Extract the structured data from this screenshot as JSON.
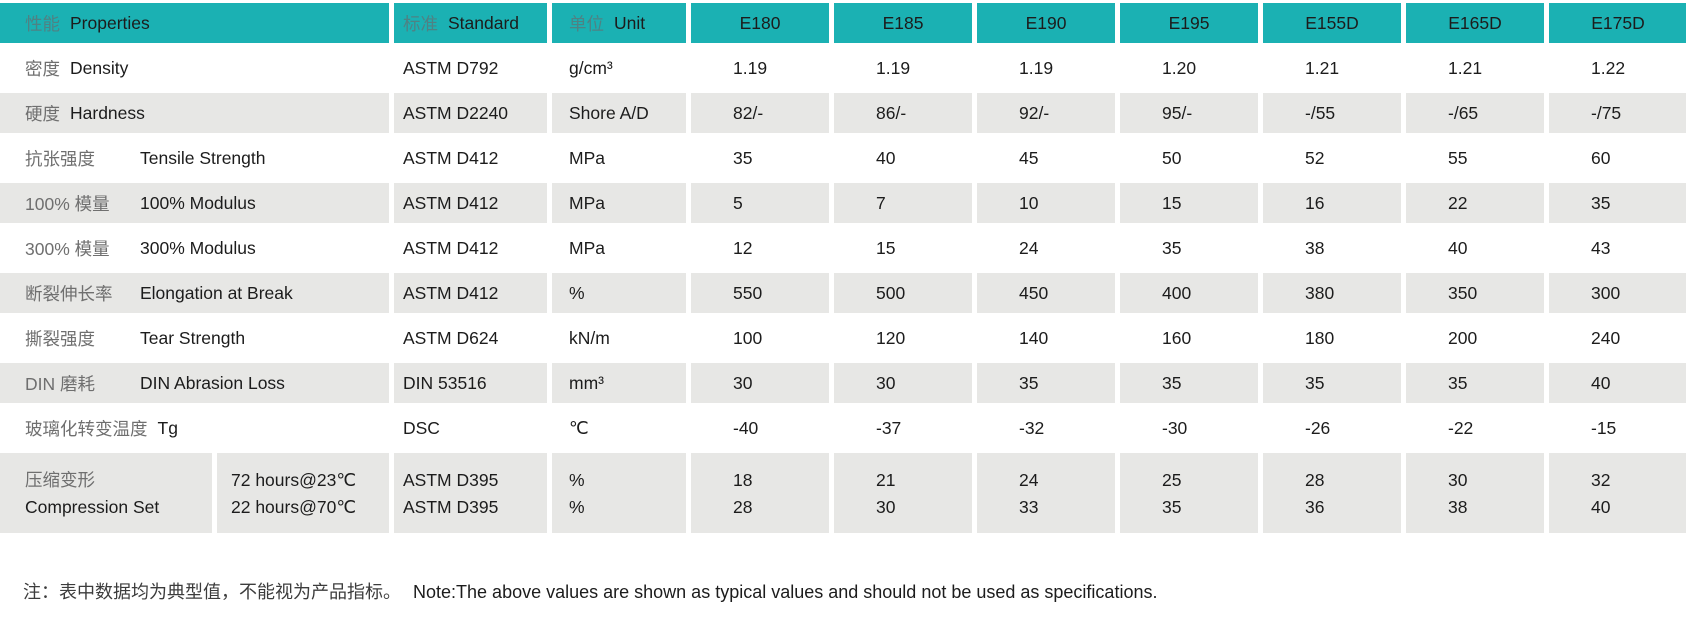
{
  "colors": {
    "header_bg": "#1bb1b3",
    "row_stripe_bg": "#e7e7e5",
    "text": "#1c1c1c",
    "chinese_text": "#6f6f6f",
    "header_chinese_text": "#4e8284"
  },
  "table": {
    "header": {
      "properties_zh": "性能",
      "properties_en": "Properties",
      "standard_zh": "标准",
      "standard_en": "Standard",
      "unit_zh": "单位",
      "unit_en": "Unit",
      "models": [
        "E180",
        "E185",
        "E190",
        "E195",
        "E155D",
        "E165D",
        "E175D"
      ]
    },
    "rows": [
      {
        "zh": "密度",
        "en": "Density",
        "tab": false,
        "standard": "ASTM D792",
        "unit": "g/cm³",
        "values": [
          "1.19",
          "1.19",
          "1.19",
          "1.20",
          "1.21",
          "1.21",
          "1.22"
        ]
      },
      {
        "zh": "硬度",
        "en": "Hardness",
        "tab": false,
        "standard": "ASTM D2240",
        "unit": "Shore A/D",
        "values": [
          "82/-",
          "86/-",
          "92/-",
          "95/-",
          "-/55",
          "-/65",
          "-/75"
        ]
      },
      {
        "zh": "抗张强度",
        "en": "Tensile Strength",
        "tab": true,
        "standard": "ASTM D412",
        "unit": "MPa",
        "values": [
          "35",
          "40",
          "45",
          "50",
          "52",
          "55",
          "60"
        ]
      },
      {
        "zh": "100% 模量",
        "en": "100% Modulus",
        "tab": true,
        "standard": "ASTM D412",
        "unit": "MPa",
        "values": [
          "5",
          "7",
          "10",
          "15",
          "16",
          "22",
          "35"
        ]
      },
      {
        "zh": "300% 模量",
        "en": "300% Modulus",
        "tab": true,
        "standard": "ASTM D412",
        "unit": "MPa",
        "values": [
          "12",
          "15",
          "24",
          "35",
          "38",
          "40",
          "43"
        ]
      },
      {
        "zh": "断裂伸长率",
        "en": "Elongation at Break",
        "tab": true,
        "standard": "ASTM D412",
        "unit": "%",
        "values": [
          "550",
          "500",
          "450",
          "400",
          "380",
          "350",
          "300"
        ]
      },
      {
        "zh": "撕裂强度",
        "en": "Tear Strength",
        "tab": true,
        "standard": "ASTM D624",
        "unit": "kN/m",
        "values": [
          "100",
          "120",
          "140",
          "160",
          "180",
          "200",
          "240"
        ]
      },
      {
        "zh": "DIN 磨耗",
        "en": "DIN Abrasion Loss",
        "tab": true,
        "standard": "DIN 53516",
        "unit": "mm³",
        "values": [
          "30",
          "30",
          "35",
          "35",
          "35",
          "35",
          "40"
        ]
      },
      {
        "zh": "玻璃化转变温度",
        "en": "Tg",
        "tab": false,
        "standard": "DSC",
        "unit": "℃",
        "values": [
          "-40",
          "-37",
          "-32",
          "-30",
          "-26",
          "-22",
          "-15"
        ]
      }
    ],
    "compound_row": {
      "zh": "压缩变形",
      "en": "Compression Set",
      "conditions": [
        "72 hours@23℃",
        "22 hours@70℃"
      ],
      "standards": [
        "ASTM D395",
        "ASTM D395"
      ],
      "units": [
        "%",
        "%"
      ],
      "values": [
        [
          "18",
          "28"
        ],
        [
          "21",
          "30"
        ],
        [
          "24",
          "33"
        ],
        [
          "25",
          "35"
        ],
        [
          "28",
          "36"
        ],
        [
          "30",
          "38"
        ],
        [
          "32",
          "40"
        ]
      ]
    },
    "footnote_zh": "注：表中数据均为典型值，不能视为产品指标。",
    "footnote_en": "Note:The above values are shown as typical values and should not be used as specifications."
  }
}
